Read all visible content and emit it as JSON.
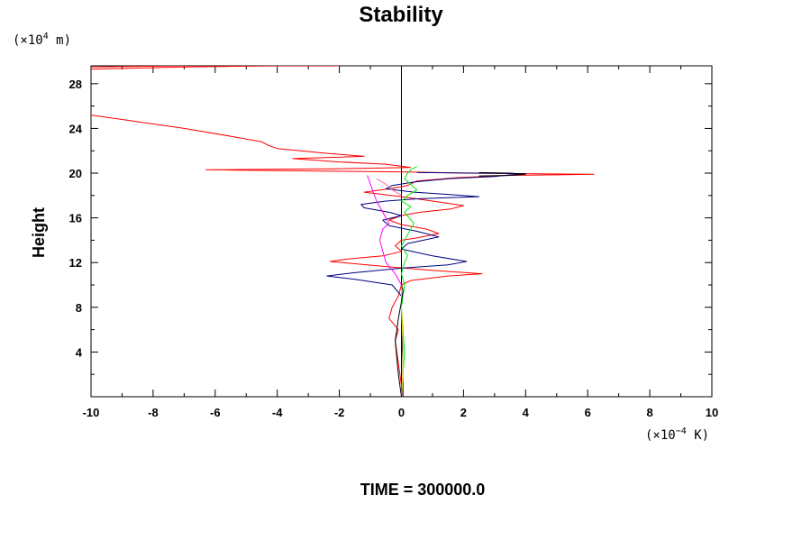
{
  "chart_data": {
    "type": "line",
    "title": "Stability",
    "ylabel": "Height",
    "y_unit": {
      "prefix": "(×10",
      "exp": "4",
      "suffix": " m)"
    },
    "x_unit": {
      "prefix": "(×10",
      "exp": "−4",
      "suffix": " K)"
    },
    "caption": "TIME = 300000.0",
    "xlim": [
      -10,
      10
    ],
    "ylim": [
      0,
      29.6
    ],
    "x_ticks": [
      -10,
      -8,
      -6,
      -4,
      -2,
      0,
      2,
      4,
      6,
      8,
      10
    ],
    "x_tick_labels": [
      "-10",
      "-8",
      "-6",
      "-4",
      "-2",
      "0",
      "2",
      "4",
      "6",
      "8",
      "10"
    ],
    "y_ticks": [
      4,
      8,
      12,
      16,
      20,
      24,
      28
    ],
    "y_tick_labels": [
      "4",
      "8",
      "12",
      "16",
      "20",
      "24",
      "28"
    ],
    "grid": false,
    "zero_line": true,
    "series": [
      {
        "color": "#ff0000",
        "x": [
          0.05,
          0.0,
          -0.1,
          -0.2,
          -0.1,
          -0.4,
          -0.3,
          -0.1,
          0.0,
          0.3,
          1.5,
          2.6,
          1.0,
          -0.3,
          -1.5,
          -2.3,
          -1.8,
          -0.6,
          0.0,
          -0.2,
          0.0,
          0.5,
          1.2,
          0.8,
          0.0,
          -0.4,
          0.0,
          0.6,
          1.6,
          2.0,
          1.0,
          0.0,
          -0.6,
          -1.2,
          -0.4,
          0.2,
          0.5,
          1.8,
          3.5,
          6.2,
          2.0,
          0.3,
          -6.3,
          -2.0,
          0.3,
          -0.5,
          -2.0,
          -3.5,
          -1.2,
          -2.5,
          -4.0,
          -4.3,
          -4.5,
          -5.5,
          -7.0,
          -9.0,
          -10.0
        ],
        "y": [
          0.0,
          1.0,
          3.0,
          5.0,
          6.0,
          7.0,
          8.0,
          9.0,
          10.0,
          10.4,
          10.8,
          11.0,
          11.3,
          11.6,
          11.9,
          12.1,
          12.3,
          12.6,
          13.0,
          13.5,
          14.0,
          14.2,
          14.6,
          15.0,
          15.4,
          15.8,
          16.2,
          16.5,
          16.8,
          17.1,
          17.5,
          17.9,
          18.1,
          18.3,
          18.6,
          18.9,
          19.3,
          19.6,
          19.8,
          19.9,
          20.0,
          20.1,
          20.3,
          20.4,
          20.5,
          20.8,
          21.0,
          21.3,
          21.5,
          21.8,
          22.2,
          22.5,
          22.8,
          23.3,
          24.0,
          24.8,
          25.2
        ]
      },
      {
        "color": "#ff0000",
        "x": [
          -10.0,
          -7.0,
          -4.0,
          -2.0,
          -3.0,
          -7.0,
          -10.0
        ],
        "y": [
          29.3,
          29.5,
          29.6,
          29.6,
          29.7,
          29.6,
          29.5
        ]
      },
      {
        "color": "#000080",
        "x": [
          0.05,
          0.05,
          0.0,
          0.0,
          -0.3,
          -1.5,
          -2.4,
          -1.5,
          0.0,
          1.5,
          2.1,
          1.0,
          0.0,
          0.2,
          1.2,
          0.5,
          -0.4,
          -0.6,
          0.0,
          -0.4,
          -1.2,
          -1.3,
          -0.5,
          0.5,
          1.5,
          2.5,
          1.5,
          0.4,
          -0.5,
          -0.3,
          0.4,
          1.5,
          3.0,
          3.5,
          3.8,
          4.0,
          2.5,
          0.5
        ],
        "y": [
          0.0,
          3.0,
          6.0,
          9.0,
          10.0,
          10.5,
          10.8,
          11.1,
          11.5,
          11.8,
          12.1,
          12.6,
          13.2,
          13.7,
          14.3,
          14.8,
          15.3,
          15.8,
          16.2,
          16.5,
          16.9,
          17.2,
          17.5,
          17.7,
          17.8,
          17.9,
          18.1,
          18.3,
          18.6,
          18.9,
          19.2,
          19.5,
          19.7,
          19.85,
          19.9,
          19.95,
          20.0,
          20.05
        ]
      },
      {
        "color": "#00ee00",
        "x": [
          0.0,
          0.1,
          0.0,
          0.1,
          0.0,
          0.1,
          0.2,
          0.0,
          0.2,
          0.4,
          0.1,
          0.3,
          0.0,
          0.2,
          0.5,
          0.3,
          0.1,
          0.2,
          0.3,
          0.5
        ],
        "y": [
          0.0,
          4.0,
          8.0,
          10.0,
          11.0,
          12.0,
          12.6,
          13.5,
          14.5,
          15.5,
          16.5,
          17.0,
          17.5,
          18.0,
          18.5,
          19.0,
          19.5,
          20.0,
          20.3,
          20.6
        ]
      },
      {
        "color": "#ff00ff",
        "x": [
          0.0,
          -0.2,
          -0.5,
          -0.7,
          -0.6,
          -0.4,
          -0.6,
          -0.8,
          -1.0,
          -1.1
        ],
        "y": [
          10.0,
          11.0,
          12.0,
          14.0,
          15.0,
          15.5,
          16.5,
          17.5,
          19.0,
          19.8
        ]
      },
      {
        "color": "#ff69b4",
        "x": [
          0.0,
          -0.3,
          -0.5,
          -0.8
        ],
        "y": [
          18.0,
          18.5,
          19.0,
          19.5
        ]
      },
      {
        "color": "#ffcc00",
        "x": [
          0.0,
          0.05,
          0.05,
          0.0,
          0.0
        ],
        "y": [
          0.0,
          2.0,
          5.0,
          8.0,
          10.0
        ]
      },
      {
        "color": "#000000",
        "x": [
          0.0,
          -0.1,
          -0.2,
          -0.1,
          0.0,
          0.05,
          0.0
        ],
        "y": [
          0.0,
          2.0,
          5.0,
          7.0,
          8.5,
          9.5,
          10.0
        ]
      },
      {
        "color": "#000000",
        "x": [
          2.5,
          3.5,
          4.0,
          3.5,
          2.5
        ],
        "y": [
          19.75,
          19.8,
          19.9,
          20.0,
          20.05
        ]
      }
    ]
  }
}
